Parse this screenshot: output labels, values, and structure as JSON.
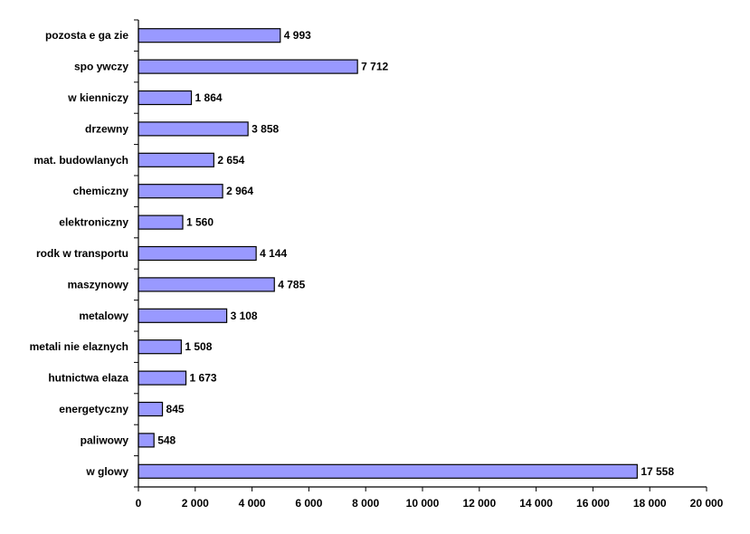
{
  "chart_data": {
    "type": "bar",
    "orientation": "horizontal",
    "categories": [
      "pozosta e ga  zie",
      "spo ywczy",
      "w   kienniczy",
      "drzewny",
      "mat. budowlanych",
      "chemiczny",
      "elektroniczny",
      "rodk  w transportu",
      "maszynowy",
      "metalowy",
      "metali nie  elaznych",
      "hutnictwa  elaza",
      "energetyczny",
      "paliwowy",
      "w  glowy"
    ],
    "values": [
      4993,
      7712,
      1864,
      3858,
      2654,
      2964,
      1560,
      4144,
      4785,
      3108,
      1508,
      1673,
      845,
      548,
      17558
    ],
    "value_labels": [
      "4 993",
      "7 712",
      "1 864",
      "3 858",
      "2 654",
      "2 964",
      "1 560",
      "4 144",
      "4 785",
      "3 108",
      "1 508",
      "1 673",
      "845",
      "548",
      "17 558"
    ],
    "xlim": [
      0,
      20000
    ],
    "x_ticks": [
      0,
      2000,
      4000,
      6000,
      8000,
      10000,
      12000,
      14000,
      16000,
      18000,
      20000
    ],
    "x_tick_labels": [
      "0",
      "2 000",
      "4 000",
      "6 000",
      "8 000",
      "10 000",
      "12 000",
      "14 000",
      "16 000",
      "18 000",
      "20 000"
    ],
    "title": "",
    "xlabel": "",
    "ylabel": "",
    "grid": false,
    "legend": "none",
    "colors": {
      "bar_fill": "#9999ff",
      "bar_stroke": "#000000",
      "axis": "#000000",
      "text": "#000000",
      "background": "#ffffff"
    }
  }
}
